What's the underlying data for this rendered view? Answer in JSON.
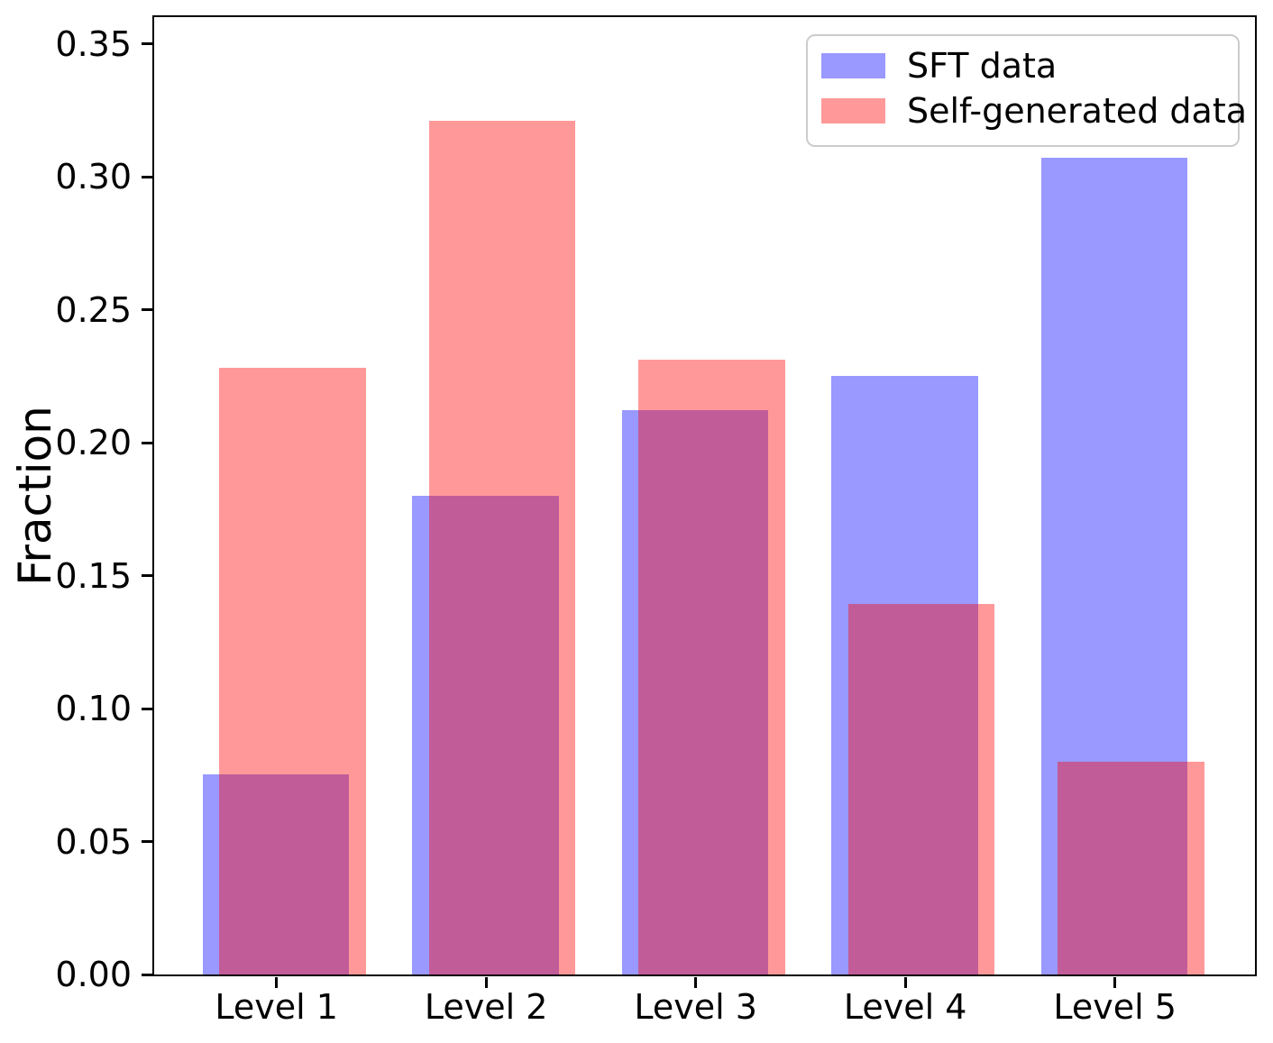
{
  "chart_data": {
    "type": "bar",
    "title": "",
    "xlabel": "",
    "ylabel": "Fraction",
    "categories": [
      "Level 1",
      "Level 2",
      "Level 3",
      "Level 4",
      "Level 5"
    ],
    "series": [
      {
        "name": "SFT data",
        "color": "#0000ff",
        "alpha": 0.4,
        "blended_hex_on_white": "#9999ff",
        "values": [
          0.075,
          0.18,
          0.212,
          0.225,
          0.307
        ]
      },
      {
        "name": "Self-generated data",
        "color": "#ff0000",
        "alpha": 0.4,
        "blended_hex_on_white": "#ff9999",
        "values": [
          0.228,
          0.321,
          0.231,
          0.139,
          0.08
        ]
      }
    ],
    "overlap_blend_hex": "#c25c99",
    "ylim": [
      0,
      0.36
    ],
    "yticks": [
      "0.00",
      "0.05",
      "0.10",
      "0.15",
      "0.20",
      "0.25",
      "0.30",
      "0.35"
    ],
    "grid": false,
    "legend_position": "upper right",
    "bar_style": "overlapping translucent bars, second series shifted slightly right",
    "background": "#ffffff",
    "spine_color": "#000000"
  }
}
